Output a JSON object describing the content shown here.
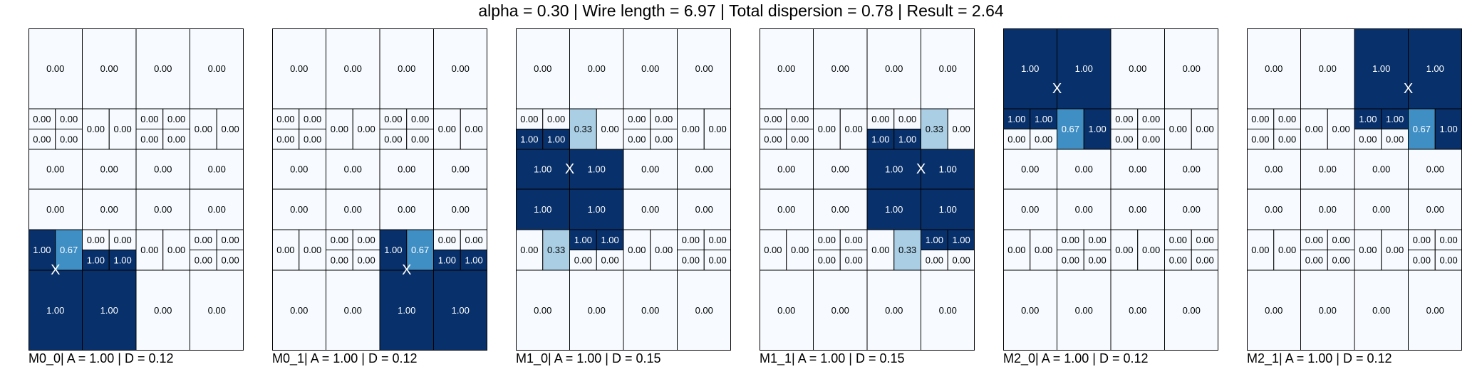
{
  "title": "alpha = 0.30 | Wire length = 6.97 | Total dispersion = 0.78 | Result = 2.64",
  "colors": {
    "zero": "#f7fbff",
    "light": "#aacfe5",
    "mid": "#3f8fc5",
    "full": "#08306b",
    "line": "#000000"
  },
  "chart_data": {
    "type": "heatmap",
    "title": "alpha = 0.30 | Wire length = 6.97 | Total dispersion = 0.78 | Result = 2.64",
    "metrics": {
      "alpha": 0.3,
      "wire_length": 6.97,
      "total_dispersion": 0.78,
      "result": 2.64
    },
    "panels": [
      {
        "name": "M0_0",
        "A": 1.0,
        "D": 0.12,
        "caption": "M0_0| A = 1.00 | D = 0.12",
        "marker": "X",
        "marker_center": [
          0.5,
          5
        ],
        "rows": [
          [
            0,
            0,
            0,
            0
          ],
          [
            [
              0,
              0,
              0,
              0
            ],
            [
              0,
              0
            ],
            [
              0,
              0,
              0,
              0
            ],
            [
              0,
              0
            ]
          ],
          [
            0,
            0,
            0,
            0
          ],
          [
            0,
            0,
            0,
            0
          ],
          [
            [
              1.0,
              0.67
            ],
            [
              0,
              0,
              1,
              1
            ],
            [
              0,
              0
            ],
            [
              0,
              0,
              0,
              0
            ]
          ],
          [
            1,
            1,
            0,
            0
          ]
        ]
      },
      {
        "name": "M0_1",
        "A": 1.0,
        "D": 0.12,
        "caption": "M0_1| A = 1.00 | D = 0.12",
        "marker": "X",
        "marker_center": [
          2.5,
          5
        ],
        "rows": [
          [
            0,
            0,
            0,
            0
          ],
          [
            [
              0,
              0,
              0,
              0
            ],
            [
              0,
              0
            ],
            [
              0,
              0,
              0,
              0
            ],
            [
              0,
              0
            ]
          ],
          [
            0,
            0,
            0,
            0
          ],
          [
            0,
            0,
            0,
            0
          ],
          [
            [
              0,
              0
            ],
            [
              0,
              0,
              0,
              0
            ],
            [
              1.0,
              0.67
            ],
            [
              0,
              0,
              1,
              1
            ]
          ],
          [
            0,
            0,
            1,
            1
          ]
        ]
      },
      {
        "name": "M1_0",
        "A": 1.0,
        "D": 0.15,
        "caption": "M1_0| A = 1.00 | D = 0.15",
        "marker": "X",
        "marker_center": [
          1,
          2.5
        ],
        "rows": [
          [
            0,
            0,
            0,
            0
          ],
          [
            [
              0,
              0,
              1,
              1
            ],
            [
              0.33,
              0
            ],
            [
              0,
              0,
              0,
              0
            ],
            [
              0,
              0
            ]
          ],
          [
            1,
            1,
            0,
            0
          ],
          [
            1,
            1,
            0,
            0
          ],
          [
            [
              0,
              0.33
            ],
            [
              1,
              1,
              0,
              0
            ],
            [
              0,
              0
            ],
            [
              0,
              0,
              0,
              0
            ]
          ],
          [
            0,
            0,
            0,
            0
          ]
        ]
      },
      {
        "name": "M1_1",
        "A": 1.0,
        "D": 0.15,
        "caption": "M1_1| A = 1.00 | D = 0.15",
        "marker": "X",
        "marker_center": [
          3,
          2.5
        ],
        "rows": [
          [
            0,
            0,
            0,
            0
          ],
          [
            [
              0,
              0,
              0,
              0
            ],
            [
              0,
              0
            ],
            [
              0,
              0,
              1,
              1
            ],
            [
              0.33,
              0
            ]
          ],
          [
            0,
            0,
            1,
            1
          ],
          [
            0,
            0,
            1,
            1
          ],
          [
            [
              0,
              0
            ],
            [
              0,
              0,
              0,
              0
            ],
            [
              0,
              0.33
            ],
            [
              1,
              1,
              0,
              0
            ]
          ],
          [
            0,
            0,
            0,
            0
          ]
        ]
      },
      {
        "name": "M2_0",
        "A": 1.0,
        "D": 0.12,
        "caption": "M2_0| A = 1.00 | D = 0.12",
        "marker": "X",
        "marker_center": [
          1,
          0.75
        ],
        "rows": [
          [
            1,
            1,
            0,
            0
          ],
          [
            [
              1,
              1,
              0,
              0
            ],
            [
              0.67,
              1.0
            ],
            [
              0,
              0,
              0,
              0
            ],
            [
              0,
              0
            ]
          ],
          [
            0,
            0,
            0,
            0
          ],
          [
            0,
            0,
            0,
            0
          ],
          [
            [
              0,
              0
            ],
            [
              0,
              0,
              0,
              0
            ],
            [
              0,
              0
            ],
            [
              0,
              0,
              0,
              0
            ]
          ],
          [
            0,
            0,
            0,
            0
          ]
        ]
      },
      {
        "name": "M2_1",
        "A": 1.0,
        "D": 0.12,
        "caption": "M2_1| A = 1.00 | D = 0.12",
        "marker": "X",
        "marker_center": [
          3,
          0.75
        ],
        "rows": [
          [
            0,
            0,
            1,
            1
          ],
          [
            [
              0,
              0,
              0,
              0
            ],
            [
              0,
              0
            ],
            [
              1,
              1,
              0,
              0
            ],
            [
              0.67,
              1.0
            ]
          ],
          [
            0,
            0,
            0,
            0
          ],
          [
            0,
            0,
            0,
            0
          ],
          [
            [
              0,
              0
            ],
            [
              0,
              0,
              0,
              0
            ],
            [
              0,
              0
            ],
            [
              0,
              0,
              0,
              0
            ]
          ],
          [
            0,
            0,
            0,
            0
          ]
        ]
      }
    ]
  }
}
